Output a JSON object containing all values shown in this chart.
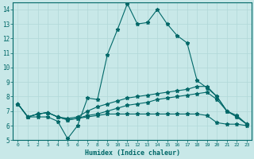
{
  "xlabel": "Humidex (Indice chaleur)",
  "xlim": [
    -0.5,
    23.5
  ],
  "ylim": [
    5,
    14.5
  ],
  "yticks": [
    5,
    6,
    7,
    8,
    9,
    10,
    11,
    12,
    13,
    14
  ],
  "xticks": [
    0,
    1,
    2,
    3,
    4,
    5,
    6,
    7,
    8,
    9,
    10,
    11,
    12,
    13,
    14,
    15,
    16,
    17,
    18,
    19,
    20,
    21,
    22,
    23
  ],
  "bg_color": "#c8e8e8",
  "line_color": "#006868",
  "grid_color": "#b0d8d8",
  "series": [
    {
      "x": [
        0,
        1,
        2,
        3,
        4,
        5,
        6,
        7,
        8,
        9,
        10,
        11,
        12,
        13,
        14,
        15,
        16,
        17,
        18,
        19,
        20,
        21,
        22,
        23
      ],
      "y": [
        7.5,
        6.6,
        6.6,
        6.6,
        6.3,
        5.1,
        6.0,
        7.9,
        7.8,
        10.9,
        12.6,
        14.4,
        13.0,
        13.1,
        14.0,
        13.0,
        12.2,
        11.7,
        9.1,
        8.6,
        8.0,
        7.0,
        6.6,
        6.1
      ]
    },
    {
      "x": [
        0,
        1,
        2,
        3,
        4,
        5,
        6,
        7,
        8,
        9,
        10,
        11,
        12,
        13,
        14,
        15,
        16,
        17,
        18,
        19,
        20,
        21,
        22,
        23
      ],
      "y": [
        7.5,
        6.6,
        6.8,
        6.9,
        6.6,
        6.5,
        6.6,
        7.0,
        7.3,
        7.5,
        7.7,
        7.9,
        8.0,
        8.1,
        8.2,
        8.3,
        8.4,
        8.5,
        8.7,
        8.7,
        8.0,
        7.0,
        6.7,
        6.1
      ]
    },
    {
      "x": [
        0,
        1,
        2,
        3,
        4,
        5,
        6,
        7,
        8,
        9,
        10,
        11,
        12,
        13,
        14,
        15,
        16,
        17,
        18,
        19,
        20,
        21,
        22,
        23
      ],
      "y": [
        7.5,
        6.6,
        6.8,
        6.9,
        6.6,
        6.4,
        6.5,
        6.6,
        6.7,
        6.8,
        6.8,
        6.8,
        6.8,
        6.8,
        6.8,
        6.8,
        6.8,
        6.8,
        6.8,
        6.7,
        6.2,
        6.1,
        6.1,
        6.0
      ]
    },
    {
      "x": [
        0,
        1,
        2,
        3,
        4,
        5,
        6,
        7,
        8,
        9,
        10,
        11,
        12,
        13,
        14,
        15,
        16,
        17,
        18,
        19,
        20,
        21,
        22,
        23
      ],
      "y": [
        7.5,
        6.6,
        6.8,
        6.9,
        6.6,
        6.4,
        6.5,
        6.7,
        6.8,
        7.0,
        7.2,
        7.4,
        7.5,
        7.6,
        7.8,
        7.9,
        8.0,
        8.1,
        8.2,
        8.3,
        7.8,
        7.0,
        6.6,
        6.1
      ]
    }
  ]
}
